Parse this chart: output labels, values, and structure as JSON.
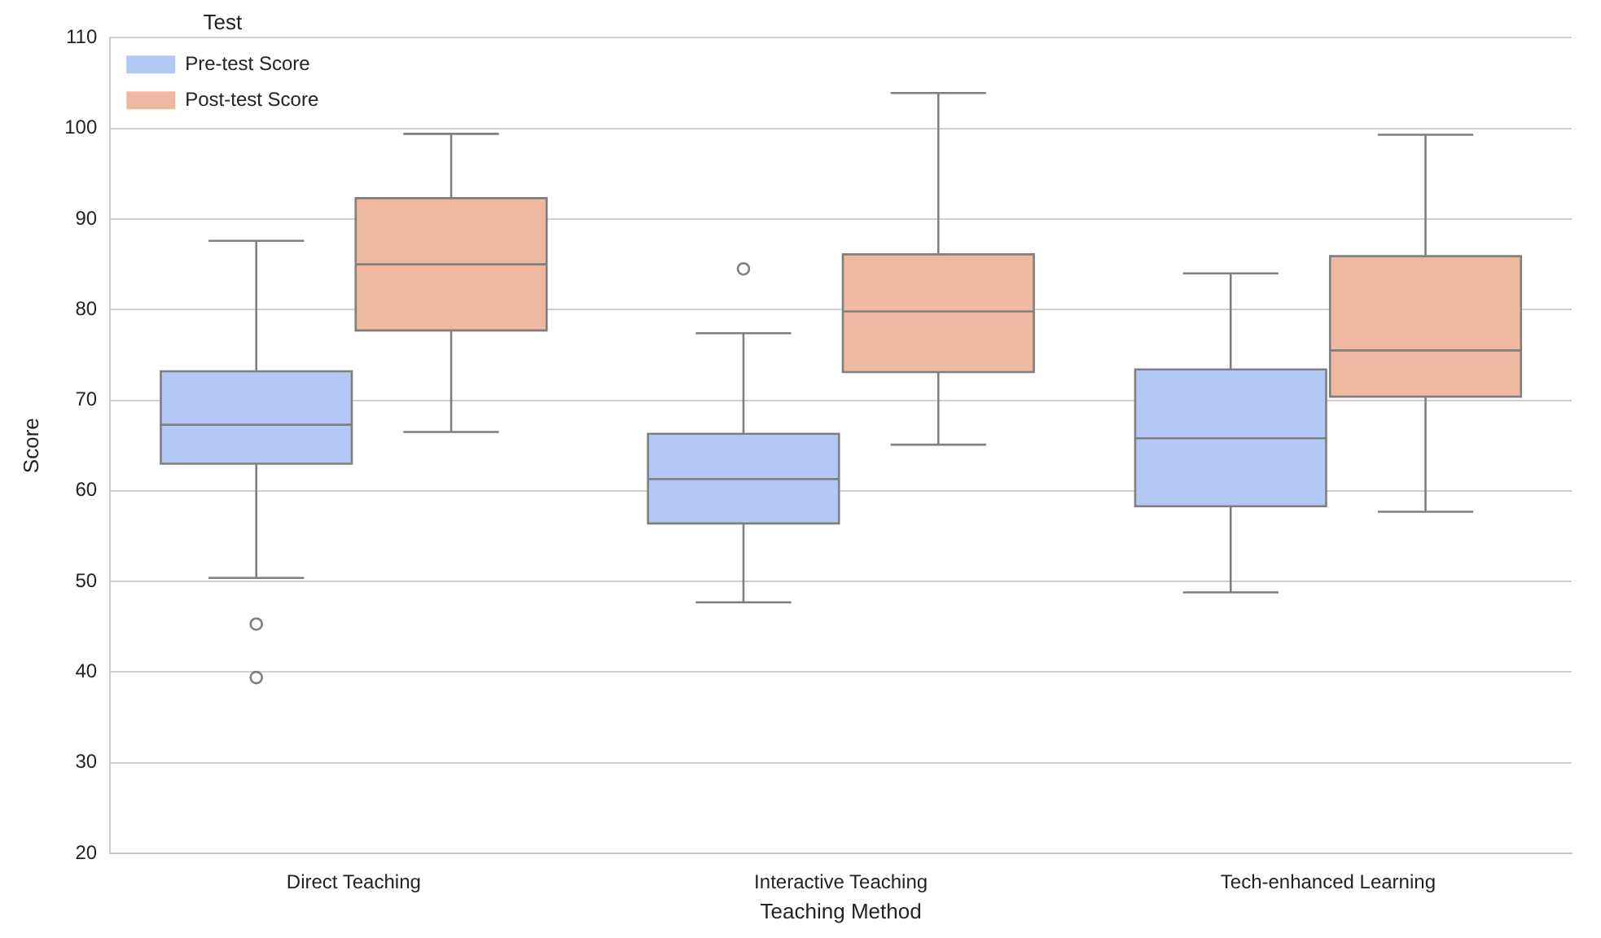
{
  "chart_data": {
    "type": "box",
    "xlabel": "Teaching Method",
    "ylabel": "Score",
    "legend_title": "Test",
    "categories": [
      "Direct Teaching",
      "Interactive Teaching",
      "Tech-enhanced Learning"
    ],
    "series": [
      {
        "name": "Pre-test Score",
        "color": "#b3c8f4",
        "boxes": [
          {
            "low": 50.4,
            "q1": 63.0,
            "median": 67.3,
            "q3": 73.2,
            "high": 87.6,
            "outliers": [
              45.3,
              39.4
            ]
          },
          {
            "low": 47.7,
            "q1": 56.4,
            "median": 61.3,
            "q3": 66.3,
            "high": 77.4,
            "outliers": [
              84.5
            ]
          },
          {
            "low": 48.8,
            "q1": 58.3,
            "median": 65.8,
            "q3": 73.4,
            "high": 84.0
          }
        ]
      },
      {
        "name": "Post-test Score",
        "color": "#efb9a1",
        "boxes": [
          {
            "low": 66.5,
            "q1": 77.7,
            "median": 85.0,
            "q3": 92.3,
            "high": 99.4
          },
          {
            "low": 65.1,
            "q1": 73.1,
            "median": 79.8,
            "q3": 86.1,
            "high": 103.9
          },
          {
            "low": 57.7,
            "q1": 70.4,
            "median": 75.5,
            "q3": 85.9,
            "high": 99.3
          }
        ]
      }
    ],
    "ylim": [
      20,
      110
    ],
    "yticks": [
      20,
      30,
      40,
      50,
      60,
      70,
      80,
      90,
      100,
      110
    ],
    "grid": "y",
    "legend": "top left"
  }
}
